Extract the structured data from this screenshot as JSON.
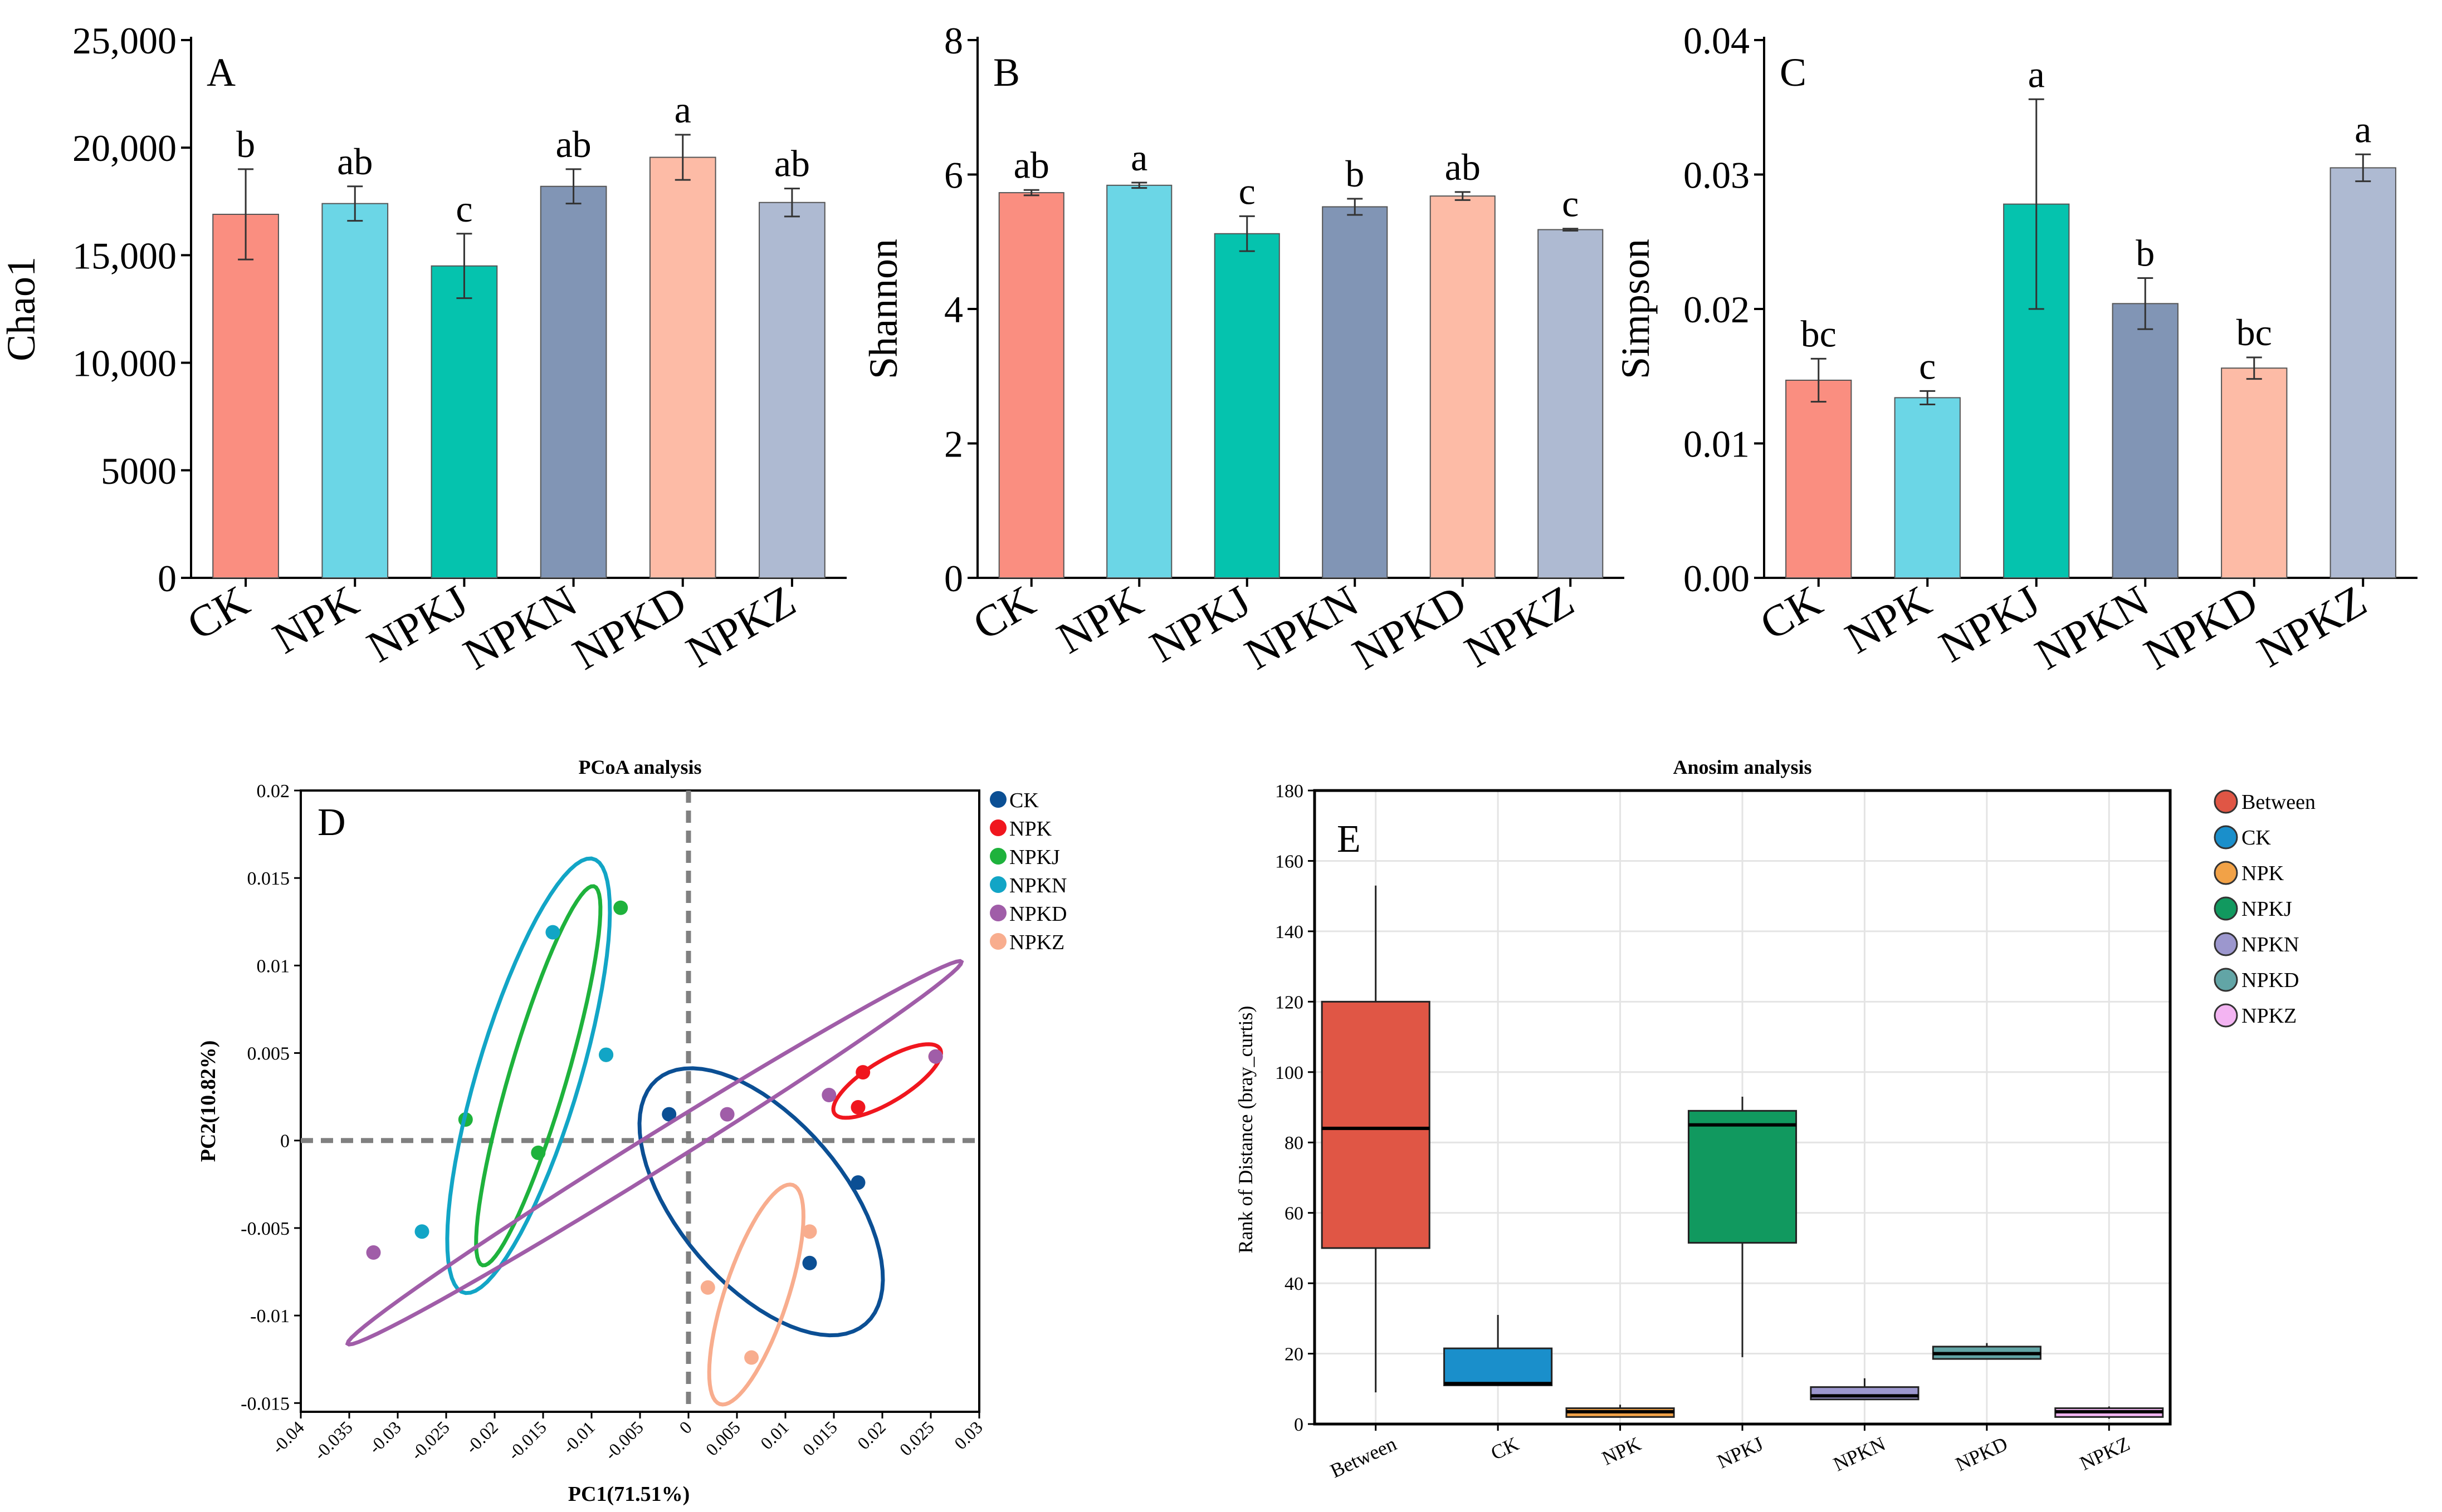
{
  "colors": {
    "CK": "#FA8E80",
    "NPK": "#6BD6E6",
    "NPKJ": "#05C3AE",
    "NPKN": "#8195B5",
    "NPKD": "#FDBBA6",
    "NPKZ": "#AEBAD2",
    "axis": "#000000",
    "errorbar": "#333333"
  },
  "chart_data": [
    {
      "panel": "A",
      "type": "bar",
      "ylabel": "Chao1",
      "categories": [
        "CK",
        "NPK",
        "NPKJ",
        "NPKN",
        "NPKD",
        "NPKZ"
      ],
      "values": [
        16900,
        17400,
        14500,
        18200,
        19550,
        17450
      ],
      "errors": [
        2100,
        800,
        1500,
        800,
        1050,
        650
      ],
      "letters": [
        "b",
        "ab",
        "c",
        "ab",
        "a",
        "ab"
      ],
      "ylim": [
        0,
        25000
      ],
      "yticks": [
        0,
        5000,
        10000,
        15000,
        20000,
        25000
      ],
      "ytick_labels": [
        "0",
        "5000",
        "10,000",
        "15,000",
        "20,000",
        "25,000"
      ]
    },
    {
      "panel": "B",
      "type": "bar",
      "ylabel": "Shannon",
      "categories": [
        "CK",
        "NPK",
        "NPKJ",
        "NPKN",
        "NPKD",
        "NPKZ"
      ],
      "values": [
        5.73,
        5.84,
        5.12,
        5.52,
        5.68,
        5.18
      ],
      "errors": [
        0.04,
        0.04,
        0.26,
        0.12,
        0.06,
        0.015
      ],
      "letters": [
        "ab",
        "a",
        "c",
        "b",
        "ab",
        "c"
      ],
      "ylim": [
        0,
        8
      ],
      "yticks": [
        0,
        2,
        4,
        6,
        8
      ],
      "ytick_labels": [
        "0",
        "2",
        "4",
        "6",
        "8"
      ]
    },
    {
      "panel": "C",
      "type": "bar",
      "ylabel": "Simpson",
      "categories": [
        "CK",
        "NPK",
        "NPKJ",
        "NPKN",
        "NPKD",
        "NPKZ"
      ],
      "values": [
        0.0147,
        0.0134,
        0.0278,
        0.0204,
        0.0156,
        0.0305
      ],
      "errors": [
        0.0016,
        0.0005,
        0.0078,
        0.0019,
        0.0008,
        0.001
      ],
      "letters": [
        "bc",
        "c",
        "a",
        "b",
        "bc",
        "a"
      ],
      "ylim": [
        0,
        0.04
      ],
      "yticks": [
        0,
        0.01,
        0.02,
        0.03,
        0.04
      ],
      "ytick_labels": [
        "0.00",
        "0.01",
        "0.02",
        "0.03",
        "0.04"
      ]
    },
    {
      "panel": "D",
      "type": "scatter",
      "title": "PCoA analysis",
      "xlabel": "PC1(71.51%)",
      "ylabel": "PC2(10.82%)",
      "xlim": [
        -0.04,
        0.03
      ],
      "ylim": [
        -0.0155,
        0.02
      ],
      "xticks": [
        -0.04,
        -0.035,
        -0.03,
        -0.025,
        -0.02,
        -0.015,
        -0.01,
        -0.005,
        0,
        0.005,
        0.01,
        0.015,
        0.02,
        0.025,
        0.03
      ],
      "xtick_labels": [
        "-0.04",
        "-0.035",
        "-0.03",
        "-0.025",
        "-0.02",
        "-0.015",
        "-0.01",
        "-0.005",
        "0",
        "0.005",
        "0.01",
        "0.015",
        "0.02",
        "0.025",
        "0.03"
      ],
      "yticks": [
        -0.015,
        -0.01,
        -0.005,
        0,
        0.005,
        0.01,
        0.015,
        0.02
      ],
      "ytick_labels": [
        "-0.015",
        "-0.01",
        "-0.005",
        "0",
        "0.005",
        "0.01",
        "0.015",
        "0.02"
      ],
      "legend_position": "right",
      "series": [
        {
          "name": "CK",
          "color": "#0B4F94",
          "points": [
            [
              -0.002,
              0.0015
            ],
            [
              0.0175,
              -0.0024
            ],
            [
              0.0125,
              -0.007
            ]
          ],
          "ellipse": {
            "cx": 0.0075,
            "cy": -0.0035,
            "rx": 0.0135,
            "ry": 0.0058,
            "angle_deg": -24
          }
        },
        {
          "name": "NPK",
          "color": "#F0161E",
          "points": [
            [
              0.0255,
              0.0048
            ],
            [
              0.018,
              0.0039
            ],
            [
              0.0175,
              0.0019
            ]
          ],
          "ellipse": {
            "cx": 0.0205,
            "cy": 0.0034,
            "rx": 0.0058,
            "ry": 0.0013,
            "angle_deg": 17
          }
        },
        {
          "name": "NPKJ",
          "color": "#1EB23C",
          "points": [
            [
              -0.007,
              0.0133
            ],
            [
              -0.0085,
              0.0049
            ],
            [
              -0.0155,
              -0.0007
            ],
            [
              -0.023,
              0.0012
            ]
          ],
          "ellipse": {
            "cx": -0.0155,
            "cy": 0.0037,
            "rx": 0.0123,
            "ry": 0.0027,
            "angle_deg": 61
          }
        },
        {
          "name": "NPKN",
          "color": "#12A5C6",
          "points": [
            [
              -0.014,
              0.0119
            ],
            [
              -0.0275,
              -0.0052
            ],
            [
              -0.0085,
              0.0049
            ]
          ],
          "ellipse": {
            "cx": -0.0165,
            "cy": 0.0037,
            "rx": 0.0142,
            "ry": 0.0048,
            "angle_deg": 59
          }
        },
        {
          "name": "NPKD",
          "color": "#A05DA8",
          "points": [
            [
              -0.0325,
              -0.0064
            ],
            [
              0.004,
              0.0015
            ],
            [
              0.0145,
              0.0026
            ],
            [
              0.0255,
              0.0048
            ]
          ],
          "ellipse": {
            "cx": -0.0035,
            "cy": -0.0007,
            "rx": 0.0335,
            "ry": 0.0011,
            "angle_deg": 19
          }
        },
        {
          "name": "NPKZ",
          "color": "#F8AD8E",
          "points": [
            [
              0.0125,
              -0.0052
            ],
            [
              0.002,
              -0.0084
            ],
            [
              0.0065,
              -0.0124
            ]
          ],
          "ellipse": {
            "cx": 0.007,
            "cy": -0.0088,
            "rx": 0.0074,
            "ry": 0.0029,
            "angle_deg": 55
          }
        }
      ]
    },
    {
      "panel": "E",
      "type": "box",
      "title": "Anosim analysis",
      "ylabel": "Rank of Distance (bray_curtis)",
      "ylim": [
        0,
        180
      ],
      "yticks": [
        0,
        20,
        40,
        60,
        80,
        100,
        120,
        140,
        160,
        180
      ],
      "ytick_labels": [
        "0",
        "20",
        "40",
        "60",
        "80",
        "100",
        "120",
        "140",
        "160",
        "180"
      ],
      "legend_position": "right",
      "categories": [
        "Between",
        "CK",
        "NPK",
        "NPKJ",
        "NPKN",
        "NPKD",
        "NPKZ"
      ],
      "colors": [
        "#E05645",
        "#1A8FCB",
        "#F2A247",
        "#11995F",
        "#9C97CE",
        "#62A5A6",
        "#F3B4F2"
      ],
      "boxes": [
        {
          "min": 9,
          "q1": 50,
          "median": 84,
          "q3": 120,
          "max": 153
        },
        {
          "min": 11,
          "q1": 11,
          "median": 11.5,
          "q3": 21.5,
          "max": 31
        },
        {
          "min": 2,
          "q1": 2,
          "median": 3.5,
          "q3": 4.5,
          "max": 5.5
        },
        {
          "min": 19,
          "q1": 51.5,
          "median": 85,
          "q3": 89,
          "max": 93
        },
        {
          "min": 7,
          "q1": 7,
          "median": 8,
          "q3": 10.5,
          "max": 13
        },
        {
          "min": 18.5,
          "q1": 18.5,
          "median": 20,
          "q3": 22,
          "max": 23
        },
        {
          "min": 1.5,
          "q1": 2,
          "median": 3.5,
          "q3": 4.5,
          "max": 5
        }
      ]
    }
  ]
}
